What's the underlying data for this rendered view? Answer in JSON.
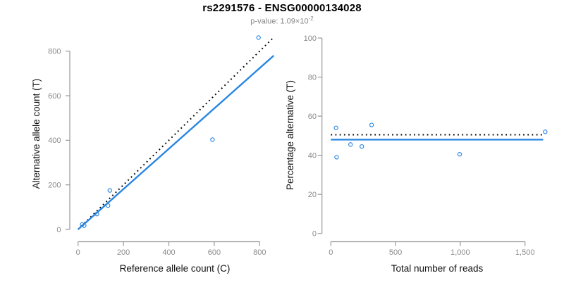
{
  "header": {
    "title": "rs2291576 - ENSG00000134028",
    "subtitle_text": "p-value: 1.09×10",
    "subtitle_exponent": "-2"
  },
  "colors": {
    "accent_blue": "#2986E2",
    "dotted_line": "#000000",
    "axis": "#999999",
    "tick_label": "#8A8A8A",
    "axis_title": "#111111",
    "subtitle": "#878787",
    "background": "#FFFFFF"
  },
  "chart_data": [
    {
      "name": "left-plot",
      "type": "scatter",
      "xlabel": "Reference allele count (C)",
      "ylabel": "Alternative allele count (T)",
      "xlim": [
        0,
        860
      ],
      "ylim": [
        0,
        860
      ],
      "grid": false,
      "legend": "none",
      "xticks": [
        0,
        200,
        400,
        600,
        800
      ],
      "xtick_labels": [
        "0",
        "200",
        "400",
        "600",
        "800"
      ],
      "yticks": [
        0,
        200,
        400,
        600,
        800
      ],
      "ytick_labels": [
        "0",
        "200",
        "400",
        "600",
        "800"
      ],
      "points": [
        [
          18,
          22
        ],
        [
          27,
          17
        ],
        [
          83,
          69
        ],
        [
          132,
          107
        ],
        [
          140,
          175
        ],
        [
          592,
          403
        ],
        [
          795,
          861
        ]
      ],
      "lines": [
        {
          "name": "identity-line",
          "style": "dotted",
          "color": "dotted_line",
          "from": [
            0,
            0
          ],
          "to": [
            857,
            857
          ]
        },
        {
          "name": "fit-line",
          "style": "solid",
          "color": "accent_blue",
          "from": [
            0,
            0
          ],
          "to": [
            862,
            780
          ]
        }
      ]
    },
    {
      "name": "right-plot",
      "type": "scatter",
      "xlabel": "Total number of reads",
      "ylabel": "Percentage alternative (T)",
      "xlim": [
        0,
        1660
      ],
      "ylim": [
        0,
        100
      ],
      "grid": false,
      "legend": "none",
      "xticks": [
        0,
        500,
        1000,
        1500
      ],
      "xtick_labels": [
        "0",
        "500",
        "1,000",
        "1,500"
      ],
      "yticks": [
        0,
        20,
        40,
        60,
        80,
        100
      ],
      "ytick_labels": [
        "0",
        "20",
        "40",
        "60",
        "80",
        "100"
      ],
      "points": [
        [
          40,
          54
        ],
        [
          44,
          39
        ],
        [
          152,
          45.5
        ],
        [
          239,
          44.5
        ],
        [
          315,
          55.5
        ],
        [
          995,
          40.5
        ],
        [
          1656,
          52
        ]
      ],
      "lines": [
        {
          "name": "expected-50pct-line",
          "style": "dotted",
          "color": "dotted_line",
          "from": [
            0,
            50.5
          ],
          "to": [
            1640,
            50.5
          ]
        },
        {
          "name": "fit-pct-line",
          "style": "solid",
          "color": "accent_blue",
          "from": [
            0,
            48
          ],
          "to": [
            1640,
            48
          ]
        }
      ]
    }
  ]
}
